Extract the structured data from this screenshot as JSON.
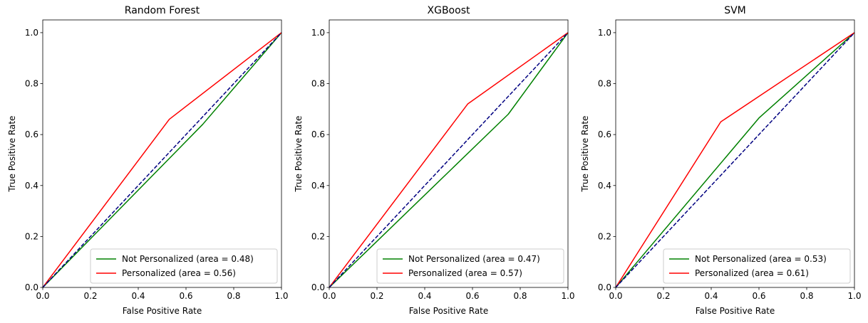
{
  "chart_data": [
    {
      "type": "line",
      "title": "Random Forest",
      "xlabel": "False Positive Rate",
      "ylabel": "True Positive Rate",
      "xlim": [
        0.0,
        1.0
      ],
      "ylim": [
        0.0,
        1.05
      ],
      "xticks": [
        "0.0",
        "0.2",
        "0.4",
        "0.6",
        "0.8",
        "1.0"
      ],
      "yticks": [
        "0.0",
        "0.2",
        "0.4",
        "0.6",
        "0.8",
        "1.0"
      ],
      "grid": false,
      "legend_position": "lower-right",
      "series": [
        {
          "name": "Not Personalized (area = 0.48)",
          "color": "#008000",
          "style": "solid",
          "x": [
            0.0,
            0.67,
            1.0
          ],
          "y": [
            0.0,
            0.64,
            1.0
          ]
        },
        {
          "name": "Personalized (area = 0.56)",
          "color": "#ff0000",
          "style": "solid",
          "x": [
            0.0,
            0.53,
            1.0
          ],
          "y": [
            0.0,
            0.66,
            1.0
          ]
        },
        {
          "color": "#000080",
          "style": "dashed",
          "x": [
            0.0,
            1.0
          ],
          "y": [
            0.0,
            1.0
          ]
        }
      ]
    },
    {
      "type": "line",
      "title": "XGBoost",
      "xlabel": "False Positive Rate",
      "ylabel": "True Positive Rate",
      "xlim": [
        0.0,
        1.0
      ],
      "ylim": [
        0.0,
        1.05
      ],
      "xticks": [
        "0.0",
        "0.2",
        "0.4",
        "0.6",
        "0.8",
        "1.0"
      ],
      "yticks": [
        "0.0",
        "0.2",
        "0.4",
        "0.6",
        "0.8",
        "1.0"
      ],
      "grid": false,
      "legend_position": "lower-right",
      "series": [
        {
          "name": "Not Personalized (area = 0.47)",
          "color": "#008000",
          "style": "solid",
          "x": [
            0.0,
            0.75,
            1.0
          ],
          "y": [
            0.0,
            0.68,
            1.0
          ]
        },
        {
          "name": "Personalized (area = 0.57)",
          "color": "#ff0000",
          "style": "solid",
          "x": [
            0.0,
            0.58,
            1.0
          ],
          "y": [
            0.0,
            0.72,
            1.0
          ]
        },
        {
          "color": "#000080",
          "style": "dashed",
          "x": [
            0.0,
            1.0
          ],
          "y": [
            0.0,
            1.0
          ]
        }
      ]
    },
    {
      "type": "line",
      "title": "SVM",
      "xlabel": "False Positive Rate",
      "ylabel": "True Positive Rate",
      "xlim": [
        0.0,
        1.0
      ],
      "ylim": [
        0.0,
        1.05
      ],
      "xticks": [
        "0.0",
        "0.2",
        "0.4",
        "0.6",
        "0.8",
        "1.0"
      ],
      "yticks": [
        "0.0",
        "0.2",
        "0.4",
        "0.6",
        "0.8",
        "1.0"
      ],
      "grid": false,
      "legend_position": "lower-right",
      "series": [
        {
          "name": "Not Personalized (area = 0.53)",
          "color": "#008000",
          "style": "solid",
          "x": [
            0.0,
            0.6,
            1.0
          ],
          "y": [
            0.0,
            0.665,
            1.0
          ]
        },
        {
          "name": "Personalized (area = 0.61)",
          "color": "#ff0000",
          "style": "solid",
          "x": [
            0.0,
            0.44,
            1.0
          ],
          "y": [
            0.0,
            0.65,
            1.0
          ]
        },
        {
          "color": "#000080",
          "style": "dashed",
          "x": [
            0.0,
            1.0
          ],
          "y": [
            0.0,
            1.0
          ]
        }
      ]
    }
  ]
}
